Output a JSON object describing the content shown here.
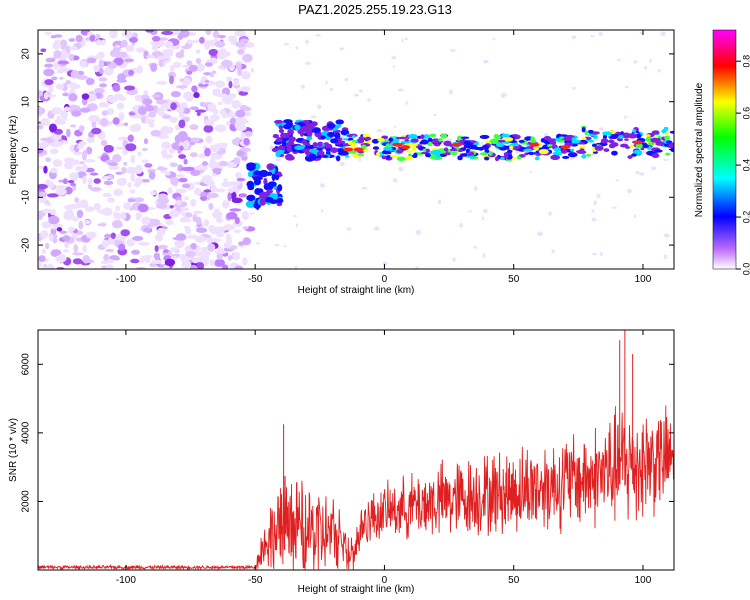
{
  "title": "PAZ1.2025.255.19.23.G13",
  "chart_data": [
    {
      "type": "heatmap",
      "xlabel": "Height of straight line (km)",
      "ylabel": "Frequency (Hz)",
      "xlim": [
        -134,
        112
      ],
      "ylim": [
        -25,
        25
      ],
      "xticks": [
        -100,
        -50,
        0,
        50,
        100
      ],
      "yticks": [
        -20,
        -10,
        0,
        10,
        20
      ],
      "colorbar": {
        "label": "Normalized spectral amplitude",
        "range": [
          0,
          0.92
        ],
        "ticks": [
          0.0,
          0.2,
          0.4,
          0.6,
          0.8
        ],
        "colormap": [
          "#ffffff",
          "#b040ff",
          "#0000ff",
          "#00ffff",
          "#00ff00",
          "#ffff00",
          "#ff0000",
          "#ff00ff"
        ]
      },
      "description_regions": [
        {
          "x_range": [
            -134,
            -52
          ],
          "freq_range": [
            -25,
            25
          ],
          "amplitude": 0.15,
          "pattern": "scattered noise"
        },
        {
          "x_range": [
            -52,
            -42
          ],
          "freq_center": -9,
          "amplitude": 0.3,
          "pattern": "strong blob"
        },
        {
          "x_range": [
            -42,
            -15
          ],
          "freq_center": 2,
          "amplitude": 0.25,
          "pattern": "band"
        },
        {
          "x_range": [
            -15,
            112
          ],
          "freq_center": 0.5,
          "amplitude": 0.55,
          "pattern": "narrow band with red peaks"
        }
      ]
    },
    {
      "type": "line",
      "xlabel": "Height of straight line (km)",
      "ylabel": "SNR (10 * v/v)",
      "xlim": [
        -134,
        112
      ],
      "ylim": [
        0,
        7000
      ],
      "xticks": [
        -100,
        -50,
        0,
        50,
        100
      ],
      "yticks": [
        2000,
        4000,
        6000
      ],
      "series": [
        {
          "name": "SNR",
          "color": "#e02020",
          "envelope": [
            {
              "x": -134,
              "base": 80,
              "amp": 60
            },
            {
              "x": -50,
              "base": 80,
              "amp": 60
            },
            {
              "x": -47,
              "base": 700,
              "amp": 800
            },
            {
              "x": -40,
              "base": 1300,
              "amp": 1800
            },
            {
              "x": -20,
              "base": 1000,
              "amp": 1400
            },
            {
              "x": -12,
              "base": 500,
              "amp": 700
            },
            {
              "x": -8,
              "base": 1400,
              "amp": 900
            },
            {
              "x": 0,
              "base": 1700,
              "amp": 900
            },
            {
              "x": 20,
              "base": 2000,
              "amp": 1300
            },
            {
              "x": 50,
              "base": 2300,
              "amp": 1500
            },
            {
              "x": 80,
              "base": 2700,
              "amp": 1700
            },
            {
              "x": 95,
              "base": 3100,
              "amp": 2200
            },
            {
              "x": 112,
              "base": 3300,
              "amp": 1600
            }
          ],
          "peaks": [
            {
              "x": -39,
              "y": 4250
            },
            {
              "x": 91,
              "y": 6700
            },
            {
              "x": 93,
              "y": 7000
            },
            {
              "x": 96,
              "y": 6300
            }
          ]
        }
      ]
    }
  ]
}
